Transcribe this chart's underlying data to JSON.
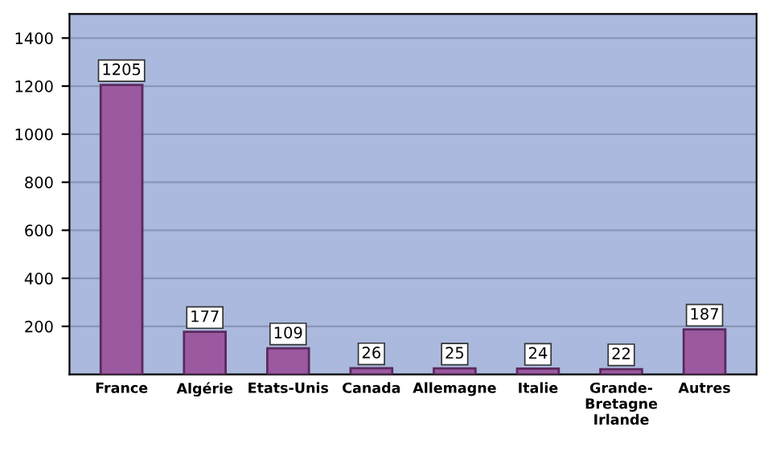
{
  "chart_data": {
    "type": "bar",
    "categories": [
      "France",
      "Algérie",
      "Etats-Unis",
      "Canada",
      "Allemagne",
      "Italie",
      "Grande-\nBretagne\nIrlande",
      "Autres"
    ],
    "values": [
      1205,
      177,
      109,
      26,
      25,
      24,
      22,
      187
    ],
    "color": "#9b59a0",
    "ylim": [
      0,
      1500
    ],
    "yticks": [
      200,
      400,
      600,
      800,
      1000,
      1200,
      1400
    ],
    "grid": "y",
    "data_labels": true
  }
}
